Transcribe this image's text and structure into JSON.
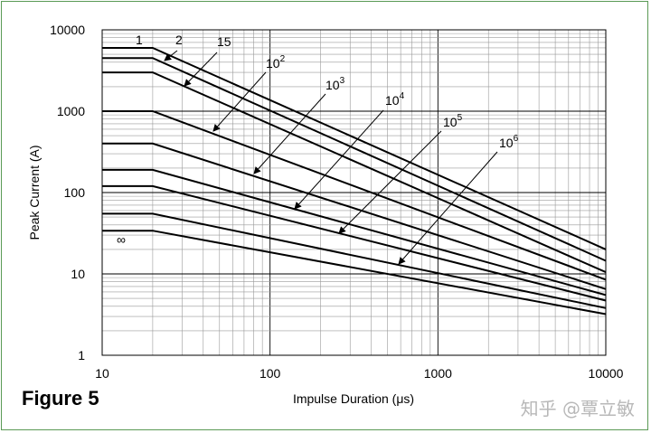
{
  "figure_label": "Figure 5",
  "watermark": "知乎 @覃立敏",
  "chart_data": {
    "type": "line",
    "title": "",
    "xlabel": "Impulse Duration (μs)",
    "ylabel": "Peak Current (A)",
    "x_scale": "log",
    "y_scale": "log",
    "xlim": [
      10,
      10000
    ],
    "ylim": [
      1,
      10000
    ],
    "x_ticks": [
      "10",
      "100",
      "1000",
      "10000"
    ],
    "y_ticks": [
      "1",
      "10",
      "100",
      "1000",
      "10000"
    ],
    "grid": true,
    "series": [
      {
        "name": "1",
        "x": [
          10,
          20,
          10000
        ],
        "y": [
          6000,
          6000,
          20
        ]
      },
      {
        "name": "2",
        "x": [
          10,
          20,
          10000
        ],
        "y": [
          4500,
          4500,
          14.5
        ]
      },
      {
        "name": "15",
        "x": [
          10,
          20,
          10000
        ],
        "y": [
          3000,
          3000,
          10.5
        ]
      },
      {
        "name": "10^2",
        "x": [
          10,
          20,
          10000
        ],
        "y": [
          1000,
          1000,
          8.5
        ]
      },
      {
        "name": "10^3",
        "x": [
          10,
          20,
          10000
        ],
        "y": [
          400,
          400,
          6.5
        ]
      },
      {
        "name": "10^4",
        "x": [
          10,
          20,
          10000
        ],
        "y": [
          190,
          190,
          5.5
        ]
      },
      {
        "name": "10^5",
        "x": [
          10,
          20,
          10000
        ],
        "y": [
          120,
          120,
          4.7
        ]
      },
      {
        "name": "10^6",
        "x": [
          10,
          20,
          10000
        ],
        "y": [
          55,
          55,
          3.8
        ]
      },
      {
        "name": "∞",
        "x": [
          10,
          20,
          10000
        ],
        "y": [
          34,
          34,
          3.2
        ]
      }
    ],
    "annotations": [
      {
        "base": "1",
        "exp": ""
      },
      {
        "base": "2",
        "exp": ""
      },
      {
        "base": "15",
        "exp": ""
      },
      {
        "base": "10",
        "exp": "2"
      },
      {
        "base": "10",
        "exp": "3"
      },
      {
        "base": "10",
        "exp": "4"
      },
      {
        "base": "10",
        "exp": "5"
      },
      {
        "base": "10",
        "exp": "6"
      },
      {
        "base": "∞",
        "exp": ""
      }
    ]
  }
}
